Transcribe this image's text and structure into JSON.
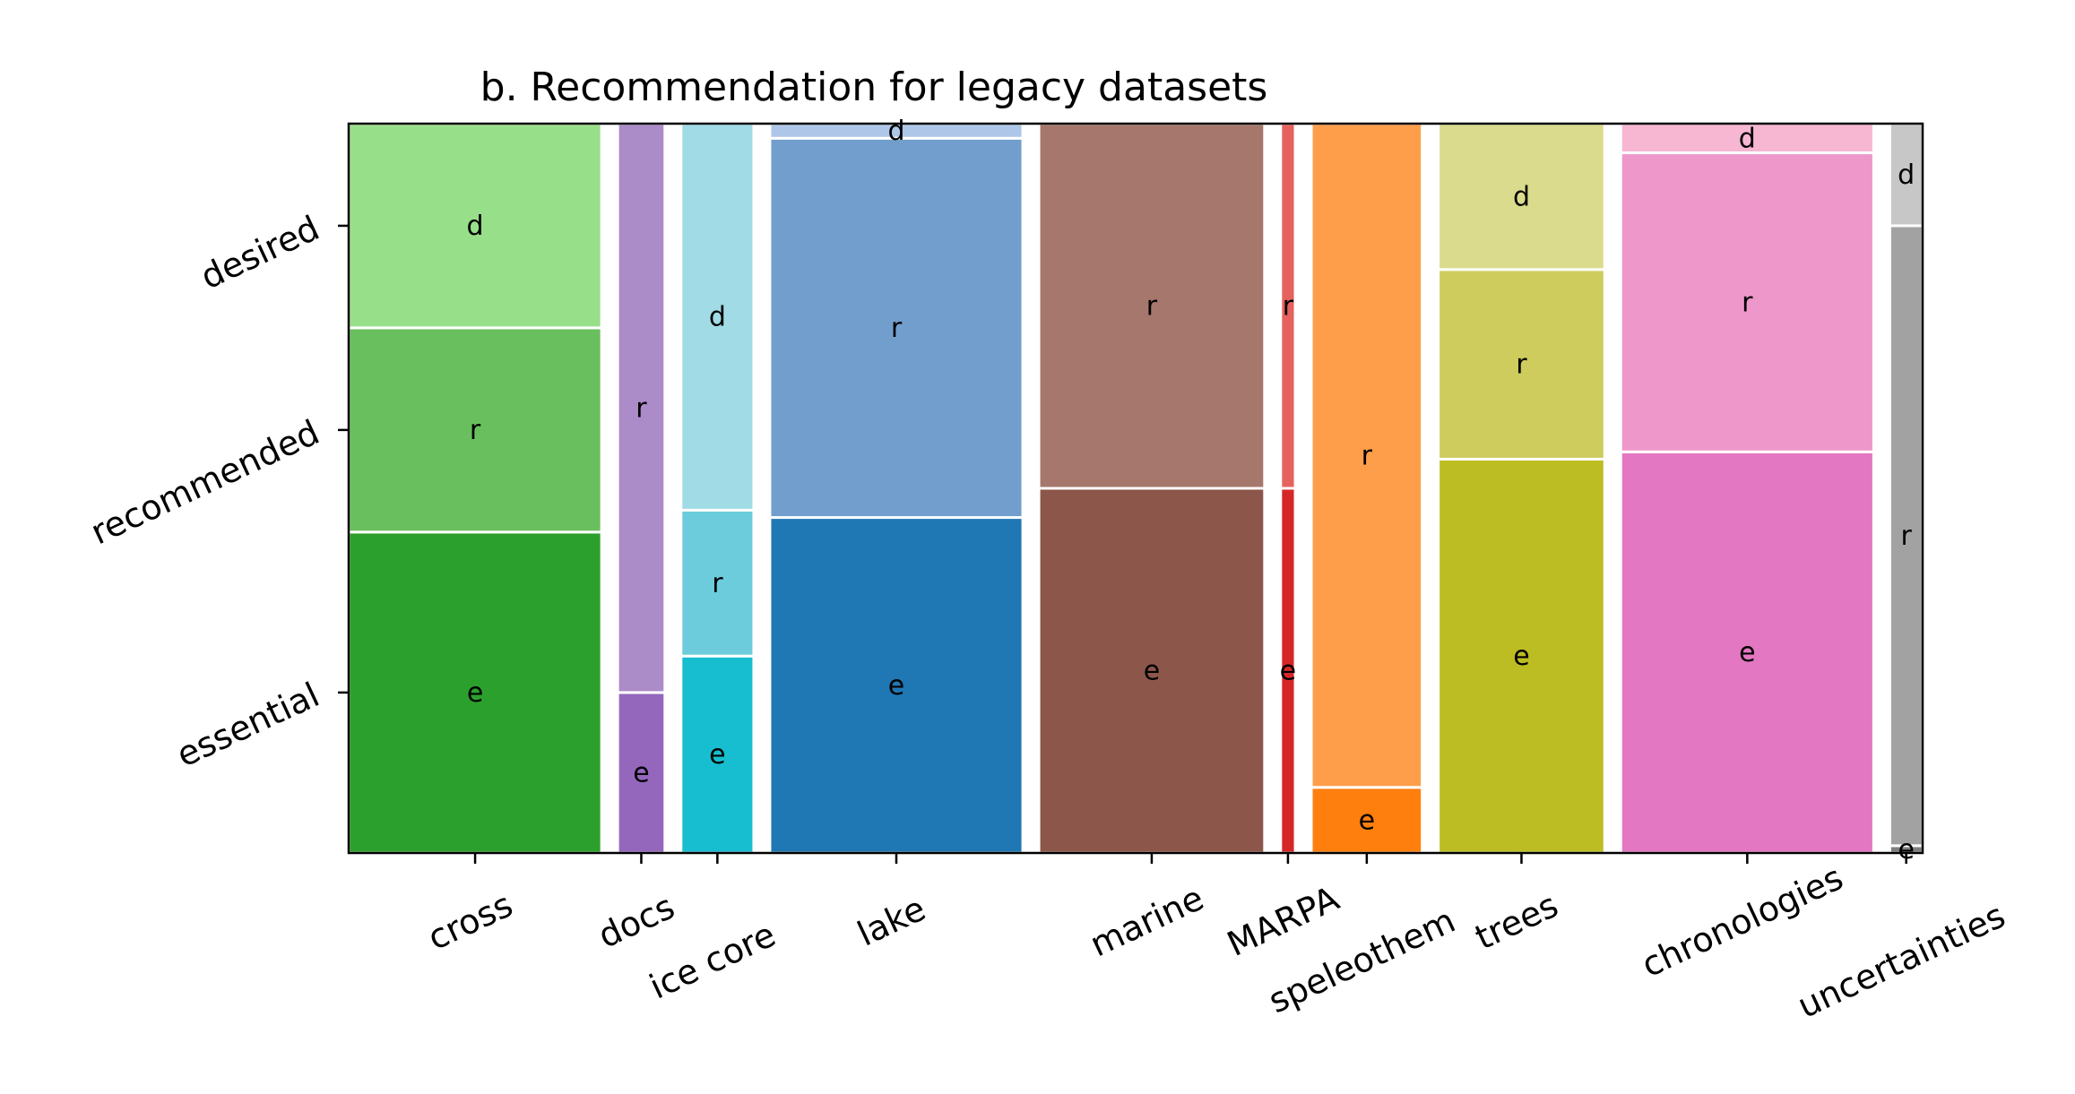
{
  "chart_data": {
    "type": "mosaic",
    "title": "b. Recommendation for legacy datasets",
    "y_levels": [
      "essential",
      "recommended",
      "desired"
    ],
    "legend": "none",
    "categories": [
      {
        "name": "cross",
        "width": 0.1634,
        "segments": [
          {
            "label": "e",
            "level": "essential",
            "fraction": 0.44,
            "color": "#2ca02c"
          },
          {
            "label": "r",
            "level": "recommended",
            "fraction": 0.28,
            "color": "#69bf5e"
          },
          {
            "label": "d",
            "level": "desired",
            "fraction": 0.28,
            "color": "#98df8a"
          }
        ]
      },
      {
        "name": "docs",
        "width": 0.0305,
        "segments": [
          {
            "label": "e",
            "level": "essential",
            "fraction": 0.22,
            "color": "#9467bd"
          },
          {
            "label": "r",
            "level": "recommended",
            "fraction": 0.78,
            "color": "#ab8bc8"
          }
        ]
      },
      {
        "name": "ice core",
        "width": 0.047,
        "segments": [
          {
            "label": "e",
            "level": "essential",
            "fraction": 0.27,
            "color": "#17becf"
          },
          {
            "label": "r",
            "level": "recommended",
            "fraction": 0.2,
            "color": "#6cccdc"
          },
          {
            "label": "d",
            "level": "desired",
            "fraction": 0.53,
            "color": "#a0dbe6"
          }
        ]
      },
      {
        "name": "lake",
        "width": 0.1634,
        "segments": [
          {
            "label": "e",
            "level": "essential",
            "fraction": 0.46,
            "color": "#1f77b4"
          },
          {
            "label": "r",
            "level": "recommended",
            "fraction": 0.52,
            "color": "#729ecd"
          },
          {
            "label": "d",
            "level": "desired",
            "fraction": 0.02,
            "color": "#aec7e8"
          }
        ]
      },
      {
        "name": "marine",
        "width": 0.1458,
        "segments": [
          {
            "label": "e",
            "level": "essential",
            "fraction": 0.5,
            "color": "#8c564b"
          },
          {
            "label": "r",
            "level": "recommended",
            "fraction": 0.5,
            "color": "#a6776c"
          }
        ]
      },
      {
        "name": "MARPA",
        "width": 0.0094,
        "segments": [
          {
            "label": "e",
            "level": "essential",
            "fraction": 0.5,
            "color": "#d62728"
          },
          {
            "label": "r",
            "level": "recommended",
            "fraction": 0.5,
            "color": "#e6625e"
          }
        ]
      },
      {
        "name": "speleothem",
        "width": 0.0716,
        "segments": [
          {
            "label": "e",
            "level": "essential",
            "fraction": 0.09,
            "color": "#ff7f0e"
          },
          {
            "label": "r",
            "level": "recommended",
            "fraction": 0.91,
            "color": "#ff9e4a"
          }
        ]
      },
      {
        "name": "trees",
        "width": 0.1075,
        "segments": [
          {
            "label": "e",
            "level": "essential",
            "fraction": 0.54,
            "color": "#bcbd22"
          },
          {
            "label": "r",
            "level": "recommended",
            "fraction": 0.26,
            "color": "#cdcc5d"
          },
          {
            "label": "d",
            "level": "desired",
            "fraction": 0.2,
            "color": "#dbdb8d"
          }
        ]
      },
      {
        "name": "chronologies",
        "width": 0.1634,
        "segments": [
          {
            "label": "e",
            "level": "essential",
            "fraction": 0.55,
            "color": "#e377c2"
          },
          {
            "label": "r",
            "level": "recommended",
            "fraction": 0.41,
            "color": "#ed97ca"
          },
          {
            "label": "d",
            "level": "desired",
            "fraction": 0.04,
            "color": "#f7b6d2"
          }
        ]
      },
      {
        "name": "uncertainties",
        "width": 0.0212,
        "segments": [
          {
            "label": "e",
            "level": "essential",
            "fraction": 0.01,
            "color": "#7f7f7f"
          },
          {
            "label": "r",
            "level": "recommended",
            "fraction": 0.85,
            "color": "#a2a2a2"
          },
          {
            "label": "d",
            "level": "desired",
            "fraction": 0.14,
            "color": "#c7c7c7"
          }
        ]
      }
    ]
  }
}
